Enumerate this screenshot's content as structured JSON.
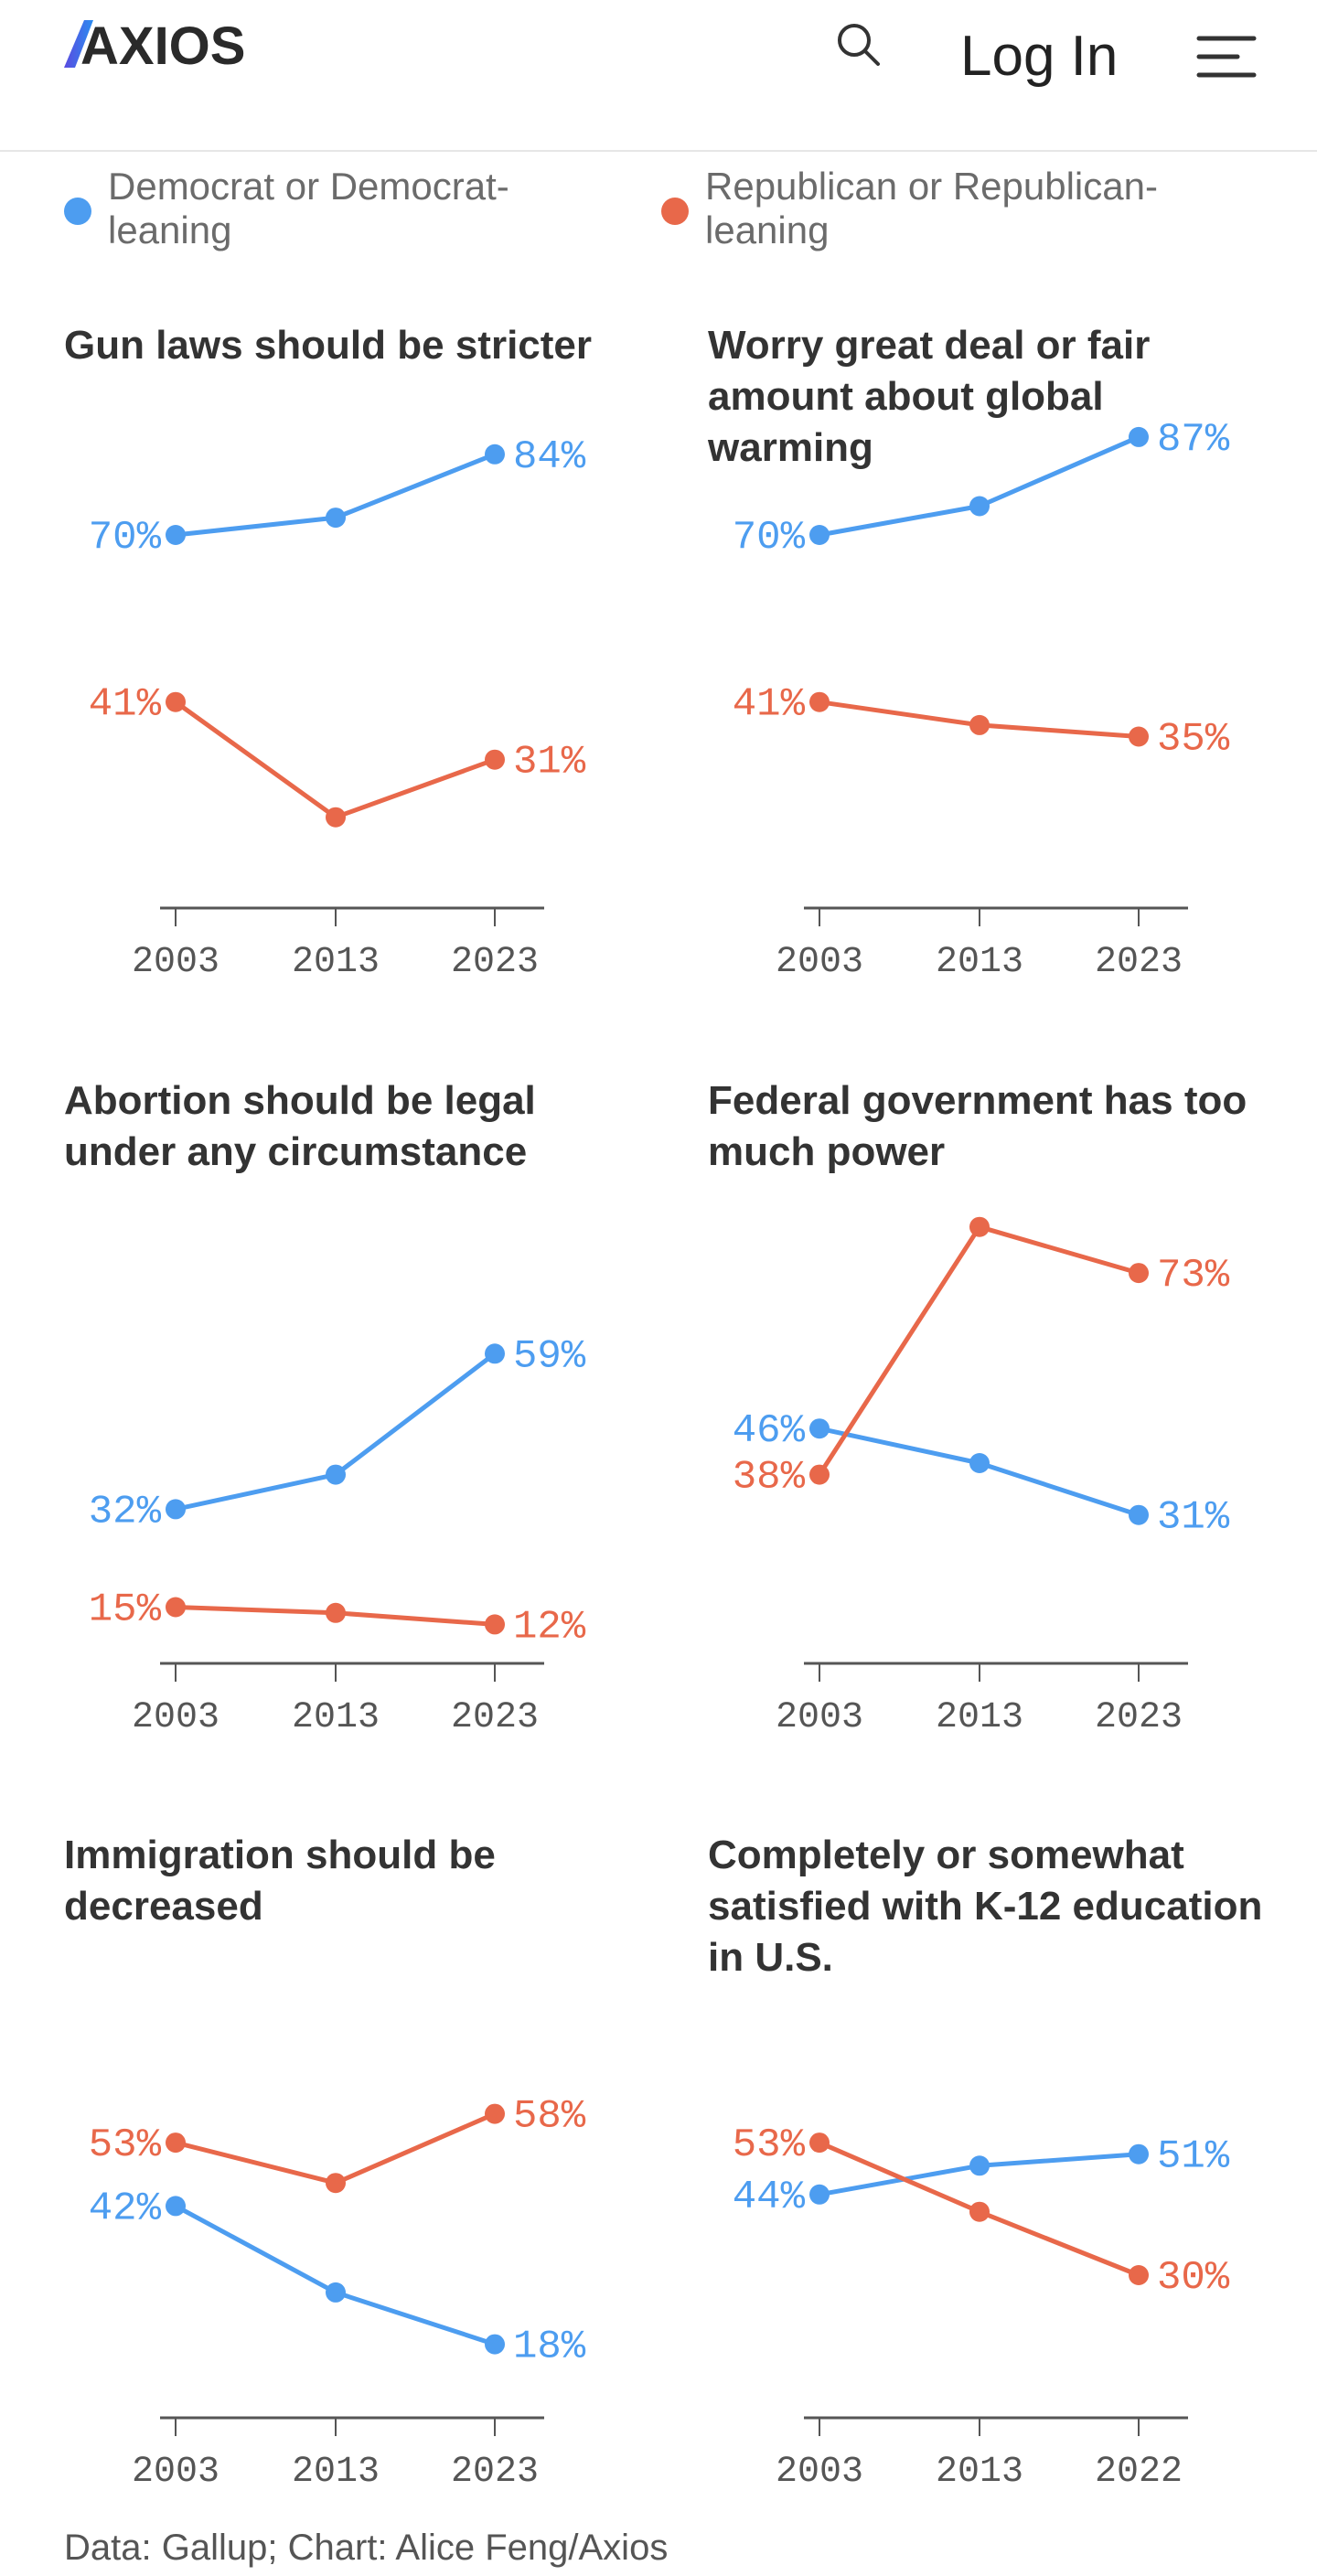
{
  "header": {
    "logo_text": "AXIOS",
    "login_label": "Log In",
    "icons": [
      "search-icon",
      "menu-icon"
    ]
  },
  "legend": [
    {
      "label_line1": "Democrat or Democrat-",
      "label_line2": "leaning",
      "color": "#4d9df0"
    },
    {
      "label_line1": "Republican or Republican-",
      "label_line2": "leaning",
      "color": "#e8684a"
    }
  ],
  "colors": {
    "dem": "#4d9df0",
    "rep": "#e8684a",
    "axis": "#555555",
    "tick_text": "#555555"
  },
  "chart_data": [
    {
      "type": "line",
      "title_lines": [
        "Gun laws should be stricter"
      ],
      "x": [
        "2003",
        "2013",
        "2023"
      ],
      "ylim": [
        0,
        100
      ],
      "series": [
        {
          "name": "Democrat or Democrat-leaning",
          "values": [
            70,
            73,
            84
          ],
          "labels": [
            "70%",
            "",
            "84%"
          ]
        },
        {
          "name": "Republican or Republican-leaning",
          "values": [
            41,
            21,
            31
          ],
          "labels": [
            "41%",
            "",
            "31%"
          ]
        }
      ]
    },
    {
      "type": "line",
      "title_lines": [
        "Worry great deal or fair",
        "amount about global",
        "warming"
      ],
      "x": [
        "2003",
        "2013",
        "2023"
      ],
      "ylim": [
        0,
        100
      ],
      "series": [
        {
          "name": "Democrat or Democrat-leaning",
          "values": [
            70,
            75,
            87
          ],
          "labels": [
            "70%",
            "",
            "87%"
          ]
        },
        {
          "name": "Republican or Republican-leaning",
          "values": [
            41,
            37,
            35
          ],
          "labels": [
            "41%",
            "",
            "35%"
          ]
        }
      ]
    },
    {
      "type": "line",
      "title_lines": [
        "Abortion should be legal",
        "under any circumstance"
      ],
      "x": [
        "2003",
        "2013",
        "2023"
      ],
      "ylim": [
        0,
        100
      ],
      "series": [
        {
          "name": "Democrat or Democrat-leaning",
          "values": [
            32,
            38,
            59
          ],
          "labels": [
            "32%",
            "",
            "59%"
          ]
        },
        {
          "name": "Republican or Republican-leaning",
          "values": [
            15,
            14,
            12
          ],
          "labels": [
            "15%",
            "",
            "12%"
          ]
        }
      ]
    },
    {
      "type": "line",
      "title_lines": [
        "Federal government has too",
        "much power"
      ],
      "x": [
        "2003",
        "2013",
        "2023"
      ],
      "ylim": [
        0,
        100
      ],
      "series": [
        {
          "name": "Democrat or Democrat-leaning",
          "values": [
            46,
            40,
            31
          ],
          "labels": [
            "46%",
            "",
            "31%"
          ]
        },
        {
          "name": "Republican or Republican-leaning",
          "values": [
            38,
            81,
            73
          ],
          "labels": [
            "38%",
            "",
            "73%"
          ]
        }
      ]
    },
    {
      "type": "line",
      "title_lines": [
        "Immigration should be",
        "decreased"
      ],
      "x": [
        "2003",
        "2013",
        "2023"
      ],
      "ylim": [
        0,
        100
      ],
      "series": [
        {
          "name": "Democrat or Democrat-leaning",
          "values": [
            42,
            27,
            18
          ],
          "labels": [
            "42%",
            "",
            "18%"
          ]
        },
        {
          "name": "Republican or Republican-leaning",
          "values": [
            53,
            46,
            58
          ],
          "labels": [
            "53%",
            "",
            "58%"
          ]
        }
      ]
    },
    {
      "type": "line",
      "title_lines": [
        "Completely or somewhat",
        "satisfied with K-12 education",
        "in U.S."
      ],
      "x": [
        "2003",
        "2013",
        "2022"
      ],
      "ylim": [
        0,
        100
      ],
      "series": [
        {
          "name": "Democrat or Democrat-leaning",
          "values": [
            44,
            49,
            51
          ],
          "labels": [
            "44%",
            "",
            "51%"
          ]
        },
        {
          "name": "Republican or Republican-leaning",
          "values": [
            53,
            41,
            30
          ],
          "labels": [
            "53%",
            "",
            "30%"
          ]
        }
      ]
    }
  ],
  "source": "Data: Gallup; Chart: Alice Feng/Axios"
}
